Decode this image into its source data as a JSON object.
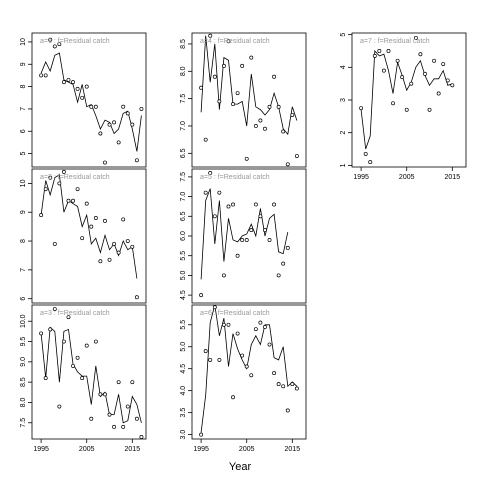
{
  "figure": {
    "xlabel": "Year",
    "axis_color": "#000000",
    "annotation_color": "#999999"
  },
  "chart_data": [
    {
      "title": "a=1 : f=Residual catch",
      "type": "line",
      "xlim": [
        1993,
        2018
      ],
      "ylim": [
        4.4,
        10.4
      ],
      "yticks": [
        5,
        6,
        7,
        8,
        9,
        10
      ],
      "x_ticks_shown": false,
      "points": [
        [
          1995,
          8.5
        ],
        [
          1996,
          8.5
        ],
        [
          1997,
          10.1
        ],
        [
          1998,
          9.8
        ],
        [
          1999,
          9.9
        ],
        [
          2000,
          8.2
        ],
        [
          2001,
          8.3
        ],
        [
          2002,
          8.2
        ],
        [
          2003,
          7.9
        ],
        [
          2004,
          7.5
        ],
        [
          2005,
          8.0
        ],
        [
          2006,
          7.1
        ],
        [
          2007,
          7.1
        ],
        [
          2008,
          5.9
        ],
        [
          2009,
          4.6
        ],
        [
          2010,
          6.3
        ],
        [
          2011,
          6.4
        ],
        [
          2012,
          5.5
        ],
        [
          2013,
          7.1
        ],
        [
          2014,
          6.8
        ],
        [
          2015,
          6.3
        ],
        [
          2016,
          4.7
        ],
        [
          2017,
          7.0
        ]
      ],
      "fitted": [
        [
          1995,
          8.6
        ],
        [
          1996,
          9.1
        ],
        [
          1997,
          8.7
        ],
        [
          1998,
          9.4
        ],
        [
          1999,
          9.5
        ],
        [
          2000,
          8.3
        ],
        [
          2001,
          8.2
        ],
        [
          2002,
          8.1
        ],
        [
          2003,
          7.3
        ],
        [
          2004,
          8.1
        ],
        [
          2005,
          7.1
        ],
        [
          2006,
          7.2
        ],
        [
          2007,
          6.7
        ],
        [
          2008,
          6.1
        ],
        [
          2009,
          6.5
        ],
        [
          2010,
          6.4
        ],
        [
          2011,
          5.9
        ],
        [
          2012,
          6.1
        ],
        [
          2013,
          6.8
        ],
        [
          2014,
          6.9
        ],
        [
          2015,
          6.1
        ],
        [
          2016,
          5.1
        ],
        [
          2017,
          6.7
        ]
      ]
    },
    {
      "title": "a=4 : f=Residual catch",
      "type": "line",
      "xlim": [
        1993,
        2018
      ],
      "ylim": [
        6.25,
        8.7
      ],
      "yticks": [
        6.5,
        7.0,
        7.5,
        8.0,
        8.5
      ],
      "x_ticks_shown": false,
      "points": [
        [
          1995,
          7.7
        ],
        [
          1996,
          6.75
        ],
        [
          1997,
          8.65
        ],
        [
          1998,
          7.9
        ],
        [
          1999,
          7.45
        ],
        [
          2000,
          8.1
        ],
        [
          2001,
          8.55
        ],
        [
          2002,
          7.4
        ],
        [
          2003,
          7.6
        ],
        [
          2004,
          8.1
        ],
        [
          2005,
          6.4
        ],
        [
          2006,
          8.25
        ],
        [
          2007,
          7.0
        ],
        [
          2008,
          7.1
        ],
        [
          2009,
          6.95
        ],
        [
          2010,
          7.35
        ],
        [
          2011,
          7.9
        ],
        [
          2012,
          7.35
        ],
        [
          2013,
          6.9
        ],
        [
          2014,
          6.3
        ],
        [
          2015,
          7.2
        ],
        [
          2016,
          6.45
        ]
      ],
      "fitted": [
        [
          1995,
          7.25
        ],
        [
          1996,
          8.65
        ],
        [
          1997,
          7.8
        ],
        [
          1998,
          8.5
        ],
        [
          1999,
          7.3
        ],
        [
          2000,
          8.25
        ],
        [
          2001,
          8.2
        ],
        [
          2002,
          7.4
        ],
        [
          2003,
          7.4
        ],
        [
          2004,
          7.45
        ],
        [
          2005,
          7.0
        ],
        [
          2006,
          7.95
        ],
        [
          2007,
          7.35
        ],
        [
          2008,
          7.3
        ],
        [
          2009,
          7.2
        ],
        [
          2010,
          7.3
        ],
        [
          2011,
          7.6
        ],
        [
          2012,
          7.35
        ],
        [
          2013,
          6.95
        ],
        [
          2014,
          6.85
        ],
        [
          2015,
          7.35
        ],
        [
          2016,
          7.1
        ]
      ]
    },
    {
      "title": "a=7 : f=Residual catch",
      "type": "line",
      "xlim": [
        1993,
        2018
      ],
      "ylim": [
        0.95,
        5.05
      ],
      "yticks": [
        1,
        2,
        3,
        4,
        5
      ],
      "x_ticks_shown": true,
      "xticks": [
        1995,
        2005,
        2015
      ],
      "points": [
        [
          1995,
          2.75
        ],
        [
          1996,
          1.35
        ],
        [
          1997,
          1.1
        ],
        [
          1998,
          4.35
        ],
        [
          1999,
          4.5
        ],
        [
          2000,
          3.9
        ],
        [
          2001,
          4.5
        ],
        [
          2002,
          2.9
        ],
        [
          2003,
          4.2
        ],
        [
          2004,
          3.7
        ],
        [
          2005,
          2.7
        ],
        [
          2006,
          3.5
        ],
        [
          2007,
          4.9
        ],
        [
          2008,
          4.4
        ],
        [
          2009,
          3.8
        ],
        [
          2010,
          2.7
        ],
        [
          2011,
          4.2
        ],
        [
          2012,
          3.2
        ],
        [
          2013,
          4.1
        ],
        [
          2014,
          3.6
        ],
        [
          2015,
          3.45
        ]
      ],
      "fitted": [
        [
          1995,
          2.7
        ],
        [
          1996,
          1.5
        ],
        [
          1997,
          1.9
        ],
        [
          1998,
          4.5
        ],
        [
          1999,
          4.35
        ],
        [
          2000,
          4.4
        ],
        [
          2001,
          3.9
        ],
        [
          2002,
          3.2
        ],
        [
          2003,
          4.15
        ],
        [
          2004,
          3.75
        ],
        [
          2005,
          3.3
        ],
        [
          2006,
          3.55
        ],
        [
          2007,
          4.0
        ],
        [
          2008,
          4.2
        ],
        [
          2009,
          3.75
        ],
        [
          2010,
          3.45
        ],
        [
          2011,
          3.65
        ],
        [
          2012,
          3.65
        ],
        [
          2013,
          3.9
        ],
        [
          2014,
          3.45
        ],
        [
          2015,
          3.5
        ]
      ]
    },
    {
      "title": "a=2 : f=Residual catch",
      "type": "line",
      "xlim": [
        1993,
        2018
      ],
      "ylim": [
        5.85,
        10.5
      ],
      "yticks": [
        6,
        7,
        8,
        9,
        10
      ],
      "x_ticks_shown": false,
      "points": [
        [
          1995,
          8.9
        ],
        [
          1996,
          9.8
        ],
        [
          1997,
          10.2
        ],
        [
          1998,
          7.9
        ],
        [
          1999,
          10.0
        ],
        [
          2000,
          10.4
        ],
        [
          2001,
          9.4
        ],
        [
          2002,
          9.4
        ],
        [
          2003,
          9.8
        ],
        [
          2004,
          8.1
        ],
        [
          2005,
          9.3
        ],
        [
          2006,
          8.5
        ],
        [
          2007,
          8.8
        ],
        [
          2008,
          7.3
        ],
        [
          2009,
          8.7
        ],
        [
          2010,
          7.35
        ],
        [
          2011,
          7.9
        ],
        [
          2012,
          7.6
        ],
        [
          2013,
          8.75
        ],
        [
          2014,
          8.0
        ],
        [
          2015,
          7.8
        ],
        [
          2016,
          6.05
        ]
      ],
      "fitted": [
        [
          1995,
          8.9
        ],
        [
          1996,
          10.1
        ],
        [
          1997,
          9.6
        ],
        [
          1998,
          10.2
        ],
        [
          1999,
          10.3
        ],
        [
          2000,
          9.0
        ],
        [
          2001,
          9.4
        ],
        [
          2002,
          9.3
        ],
        [
          2003,
          9.2
        ],
        [
          2004,
          8.5
        ],
        [
          2005,
          8.9
        ],
        [
          2006,
          7.9
        ],
        [
          2007,
          8.1
        ],
        [
          2008,
          7.6
        ],
        [
          2009,
          8.2
        ],
        [
          2010,
          7.7
        ],
        [
          2011,
          7.9
        ],
        [
          2012,
          7.5
        ],
        [
          2013,
          8.0
        ],
        [
          2014,
          7.7
        ],
        [
          2015,
          7.8
        ],
        [
          2016,
          6.7
        ]
      ]
    },
    {
      "title": "a=5 : f=Residual catch",
      "type": "line",
      "xlim": [
        1993,
        2018
      ],
      "ylim": [
        4.3,
        7.7
      ],
      "yticks": [
        4.5,
        5.0,
        5.5,
        6.0,
        6.5,
        7.0,
        7.5
      ],
      "x_ticks_shown": false,
      "points": [
        [
          1995,
          4.5
        ],
        [
          1996,
          7.1
        ],
        [
          1997,
          7.6
        ],
        [
          1998,
          6.5
        ],
        [
          1999,
          7.1
        ],
        [
          2000,
          5.0
        ],
        [
          2001,
          6.75
        ],
        [
          2002,
          6.8
        ],
        [
          2003,
          5.5
        ],
        [
          2004,
          5.9
        ],
        [
          2005,
          5.9
        ],
        [
          2006,
          6.15
        ],
        [
          2007,
          6.8
        ],
        [
          2008,
          6.5
        ],
        [
          2009,
          6.15
        ],
        [
          2010,
          5.9
        ],
        [
          2011,
          6.8
        ],
        [
          2012,
          5.0
        ],
        [
          2013,
          5.3
        ],
        [
          2014,
          5.7
        ]
      ],
      "fitted": [
        [
          1995,
          4.9
        ],
        [
          1996,
          6.9
        ],
        [
          1997,
          7.2
        ],
        [
          1998,
          5.8
        ],
        [
          1999,
          6.9
        ],
        [
          2000,
          5.35
        ],
        [
          2001,
          6.45
        ],
        [
          2002,
          5.9
        ],
        [
          2003,
          5.85
        ],
        [
          2004,
          6.0
        ],
        [
          2005,
          6.05
        ],
        [
          2006,
          6.3
        ],
        [
          2007,
          6.0
        ],
        [
          2008,
          6.7
        ],
        [
          2009,
          6.0
        ],
        [
          2010,
          6.45
        ],
        [
          2011,
          6.55
        ],
        [
          2012,
          5.6
        ],
        [
          2013,
          5.55
        ],
        [
          2014,
          6.1
        ]
      ]
    },
    {
      "title": "a=3 : f=Residual catch",
      "type": "line",
      "xlim": [
        1993,
        2018
      ],
      "ylim": [
        7.1,
        10.4
      ],
      "yticks": [
        7.5,
        8.0,
        8.5,
        9.0,
        9.5,
        10.0
      ],
      "x_ticks_shown": true,
      "xticks": [
        1995,
        2005,
        2015
      ],
      "points": [
        [
          1995,
          9.7
        ],
        [
          1996,
          8.6
        ],
        [
          1997,
          9.8
        ],
        [
          1998,
          10.3
        ],
        [
          1999,
          7.9
        ],
        [
          2000,
          9.5
        ],
        [
          2001,
          10.1
        ],
        [
          2002,
          8.9
        ],
        [
          2003,
          9.1
        ],
        [
          2004,
          8.6
        ],
        [
          2005,
          9.4
        ],
        [
          2006,
          7.6
        ],
        [
          2007,
          9.5
        ],
        [
          2008,
          8.2
        ],
        [
          2009,
          8.2
        ],
        [
          2010,
          7.7
        ],
        [
          2011,
          7.4
        ],
        [
          2012,
          8.5
        ],
        [
          2013,
          7.4
        ],
        [
          2014,
          7.9
        ],
        [
          2015,
          8.5
        ],
        [
          2016,
          7.6
        ],
        [
          2017,
          7.15
        ]
      ],
      "fitted": [
        [
          1995,
          9.7
        ],
        [
          1996,
          8.6
        ],
        [
          1997,
          9.85
        ],
        [
          1998,
          9.75
        ],
        [
          1999,
          8.5
        ],
        [
          2000,
          9.75
        ],
        [
          2001,
          9.8
        ],
        [
          2002,
          8.95
        ],
        [
          2003,
          8.75
        ],
        [
          2004,
          8.65
        ],
        [
          2005,
          8.65
        ],
        [
          2006,
          7.95
        ],
        [
          2007,
          8.9
        ],
        [
          2008,
          8.15
        ],
        [
          2009,
          8.25
        ],
        [
          2010,
          7.7
        ],
        [
          2011,
          7.7
        ],
        [
          2012,
          8.2
        ],
        [
          2013,
          7.5
        ],
        [
          2014,
          7.55
        ],
        [
          2015,
          8.15
        ],
        [
          2016,
          7.95
        ],
        [
          2017,
          7.5
        ]
      ]
    },
    {
      "title": "a=6 : f=Residual catch",
      "type": "line",
      "xlim": [
        1993,
        2018
      ],
      "ylim": [
        2.9,
        5.95
      ],
      "yticks": [
        3.0,
        3.5,
        4.0,
        4.5,
        5.0,
        5.5
      ],
      "x_ticks_shown": true,
      "xticks": [
        1995,
        2005,
        2015
      ],
      "points": [
        [
          1995,
          3.0
        ],
        [
          1996,
          4.9
        ],
        [
          1997,
          4.7
        ],
        [
          1998,
          5.9
        ],
        [
          1999,
          4.7
        ],
        [
          2000,
          5.5
        ],
        [
          2001,
          5.5
        ],
        [
          2002,
          3.85
        ],
        [
          2003,
          5.3
        ],
        [
          2004,
          4.8
        ],
        [
          2005,
          4.55
        ],
        [
          2006,
          4.35
        ],
        [
          2007,
          5.4
        ],
        [
          2008,
          5.55
        ],
        [
          2009,
          5.45
        ],
        [
          2010,
          5.05
        ],
        [
          2011,
          4.4
        ],
        [
          2012,
          4.15
        ],
        [
          2013,
          4.1
        ],
        [
          2014,
          3.55
        ],
        [
          2015,
          4.15
        ],
        [
          2016,
          4.05
        ]
      ],
      "fitted": [
        [
          1995,
          3.05
        ],
        [
          1996,
          3.9
        ],
        [
          1997,
          5.55
        ],
        [
          1998,
          5.95
        ],
        [
          1999,
          5.25
        ],
        [
          2000,
          5.65
        ],
        [
          2001,
          4.55
        ],
        [
          2002,
          5.3
        ],
        [
          2003,
          4.95
        ],
        [
          2004,
          4.7
        ],
        [
          2005,
          4.5
        ],
        [
          2006,
          5.05
        ],
        [
          2007,
          5.25
        ],
        [
          2008,
          5.05
        ],
        [
          2009,
          5.5
        ],
        [
          2010,
          5.5
        ],
        [
          2011,
          4.75
        ],
        [
          2012,
          4.7
        ],
        [
          2013,
          5.0
        ],
        [
          2014,
          4.1
        ],
        [
          2015,
          4.2
        ],
        [
          2016,
          4.1
        ]
      ]
    }
  ]
}
